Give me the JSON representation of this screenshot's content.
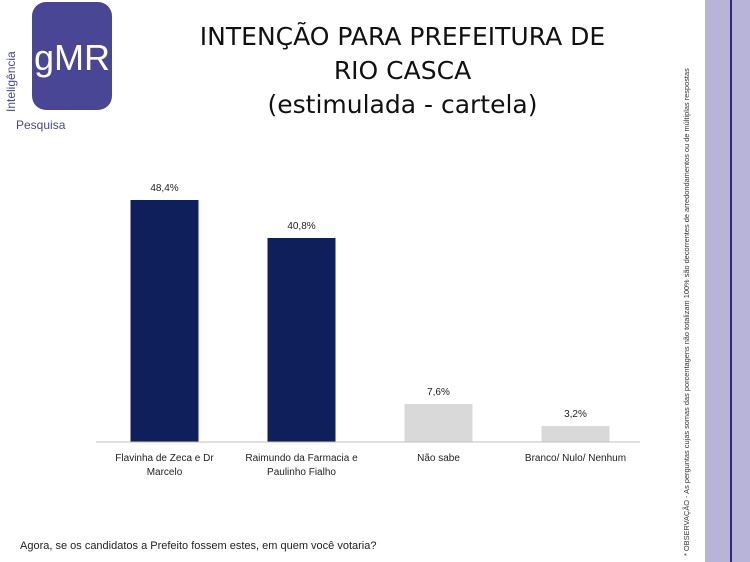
{
  "logo": {
    "brand": "gMR",
    "vertical_text": "Inteligência",
    "sub_text": "Pesquisa",
    "accent": "#4a4696"
  },
  "title_lines": [
    "INTENÇÃO PARA PREFEITURA DE",
    "RIO CASCA",
    "(estimulada - cartela)"
  ],
  "side_note": "* OBSERVAÇÃO - As perguntas cujas somas das porcentagens não totalizam 100% são decorrentes de arredondamentos ou de múltiplas respostas",
  "footer_question": "Agora, se os candidatos a Prefeito fossem estes, em quem você votaria?",
  "chart_data": {
    "type": "bar",
    "categories": [
      [
        "Flavinha de Zeca e Dr",
        "Marcelo"
      ],
      [
        "Raimundo da Farmacia e",
        "Paulinho Fialho"
      ],
      [
        "Não sabe"
      ],
      [
        "Branco/ Nulo/ Nenhum"
      ]
    ],
    "values": [
      48.4,
      40.8,
      7.6,
      3.2
    ],
    "value_labels": [
      "48,4%",
      "40,8%",
      "7,6%",
      "3,2%"
    ],
    "colors": [
      "#0e1f5b",
      "#0e1f5b",
      "#d9d9d9",
      "#d9d9d9"
    ],
    "ylim": [
      0,
      50
    ],
    "grid": false,
    "legend": "none"
  }
}
